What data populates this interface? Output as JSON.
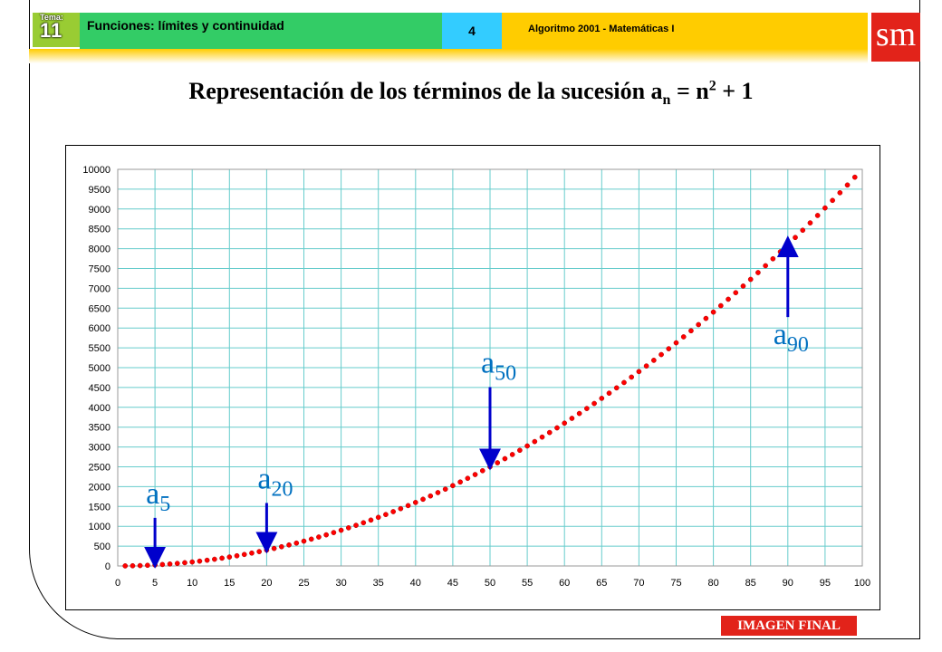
{
  "header": {
    "tema_label": "Tema:",
    "tema_number": "11",
    "topic": "Funciones: límites y continuidad",
    "page": "4",
    "book": "Algoritmo 2001 - Matemáticas I",
    "logo": "sm"
  },
  "title": {
    "prefix": "Representación de los términos de la sucesión a",
    "sub": "n",
    "mid": " = n",
    "sup": "2",
    "suffix": " + 1"
  },
  "chart_data": {
    "type": "scatter",
    "series": [
      {
        "formula": "n^2 + 1",
        "n_from": 1,
        "n_to": 99,
        "point_color": "#ff0000"
      }
    ],
    "xlim": [
      0,
      100
    ],
    "ylim": [
      0,
      10000
    ],
    "x_ticks": [
      "0",
      "5",
      "10",
      "15",
      "20",
      "25",
      "30",
      "35",
      "40",
      "45",
      "50",
      "55",
      "60",
      "65",
      "70",
      "75",
      "80",
      "85",
      "90",
      "95",
      "100"
    ],
    "y_ticks": [
      "0",
      "500",
      "1000",
      "1500",
      "2000",
      "2500",
      "3000",
      "3500",
      "4000",
      "4500",
      "5000",
      "5500",
      "6000",
      "6500",
      "7000",
      "7500",
      "8000",
      "8500",
      "9000",
      "9500",
      "10000"
    ],
    "grid": true,
    "grid_color": "#66cccc",
    "annotations": [
      {
        "base": "a",
        "sub": "5",
        "n": 5
      },
      {
        "base": "a",
        "sub": "20",
        "n": 20
      },
      {
        "base": "a",
        "sub": "50",
        "n": 50
      },
      {
        "base": "a",
        "sub": "90",
        "n": 90
      }
    ],
    "arrow_color": "#0000cc"
  },
  "badge": "IMAGEN FINAL"
}
